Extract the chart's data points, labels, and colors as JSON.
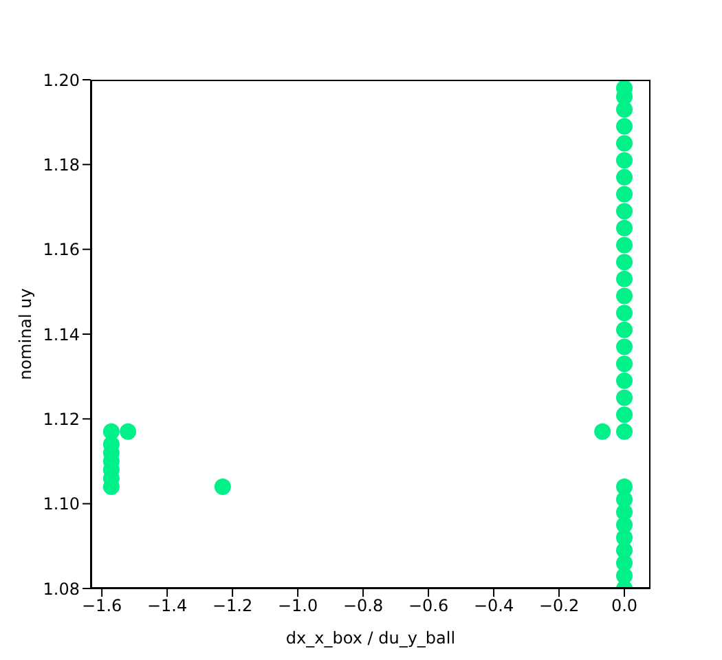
{
  "chart_data": {
    "type": "scatter",
    "xlabel": "dx_x_box / du_y_ball",
    "ylabel": "nominal uy",
    "marker": "circle",
    "grid": false,
    "legend": false,
    "xlim": [
      -1.634,
      0.08
    ],
    "xticks": [
      -1.6,
      -1.4,
      -1.2,
      {
        "value": -1,
        "label": "−1.0"
      },
      -0.8,
      -0.6,
      -0.4,
      -0.2,
      {
        "value": 0,
        "label": "0.0"
      }
    ],
    "ylim": [
      1.08,
      1.2
    ],
    "yticks": [
      1.08,
      {
        "value": 1.1,
        "label": "1.10"
      },
      1.12,
      1.14,
      1.16,
      1.18,
      {
        "value": 1.2,
        "label": "1.20"
      }
    ],
    "series": [
      {
        "color": "#00f08a",
        "x": [
          -1.571,
          -1.571,
          -1.571,
          -1.571,
          -1.571,
          -1.571,
          -1.571,
          -1.52,
          -1.23,
          -0.067,
          0,
          0,
          0,
          0,
          0,
          0,
          0,
          0,
          0,
          0,
          0,
          0,
          0,
          0,
          0,
          0,
          0,
          0,
          0,
          0,
          0,
          0,
          0,
          0,
          0,
          0,
          0,
          0,
          0,
          0,
          0
        ],
        "values": [
          1.104,
          1.106,
          1.108,
          1.11,
          1.112,
          1.114,
          1.117,
          1.117,
          1.104,
          1.117,
          1.117,
          1.121,
          1.125,
          1.129,
          1.133,
          1.137,
          1.141,
          1.145,
          1.149,
          1.153,
          1.157,
          1.161,
          1.165,
          1.169,
          1.173,
          1.177,
          1.181,
          1.185,
          1.189,
          1.193,
          1.196,
          1.198,
          1.08,
          1.083,
          1.086,
          1.089,
          1.092,
          1.095,
          1.098,
          1.101,
          1.104
        ]
      }
    ]
  }
}
